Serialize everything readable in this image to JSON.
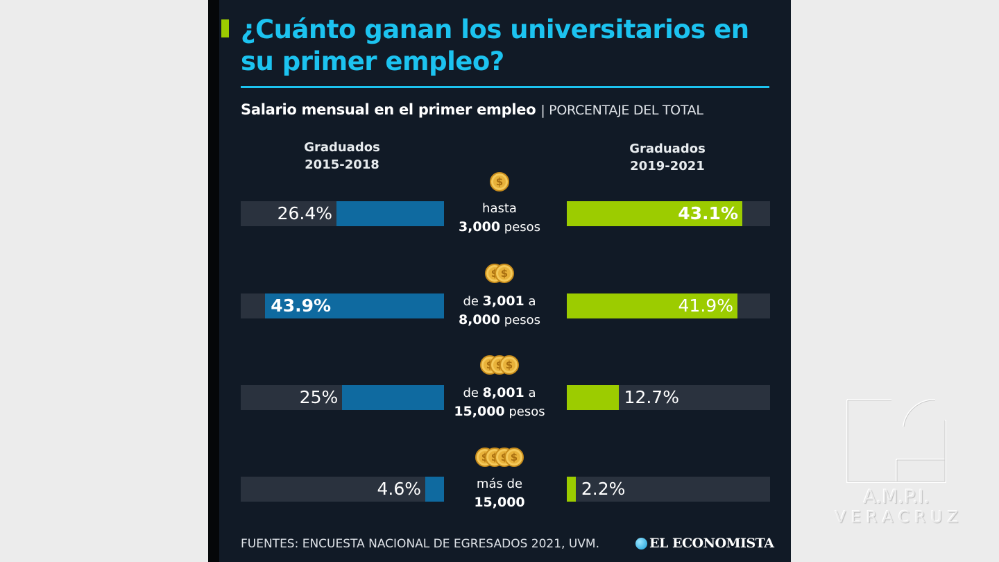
{
  "infographic": {
    "title": "¿Cuánto ganan los universitarios en su primer empleo?",
    "subtitle_bold": "Salario mensual en el primer empleo",
    "subtitle_light": "| PORCENTAJE DEL TOTAL",
    "source": "FUENTES: ENCUESTA NACIONAL DE EGRESADOS 2021, UVM.",
    "publisher_logo": "EL ECONOMISTA"
  },
  "chart_data": {
    "type": "bar",
    "title": "Salario mensual en el primer empleo",
    "ylabel": "Porcentaje del total",
    "categories": [
      {
        "pre": "hasta",
        "bold": "3,000",
        "post": " pesos",
        "coins": 1
      },
      {
        "pre": "de ",
        "bold": "3,001",
        "mid": " a",
        "bold2": "8,000",
        "post": " pesos",
        "coins": 2
      },
      {
        "pre": "de ",
        "bold": "8,001",
        "mid": " a",
        "bold2": "15,000",
        "post": " pesos",
        "coins": 3
      },
      {
        "pre": "más de",
        "bold": "15,000",
        "post": "",
        "coins": 4
      }
    ],
    "series": [
      {
        "name": "Graduados 2015-2018",
        "name_line1": "Graduados",
        "name_line2": "2015-2018",
        "color": "#0f6aa0",
        "values": [
          26.4,
          43.9,
          25,
          4.6
        ],
        "labels": [
          "26.4%",
          "43.9%",
          "25%",
          "4.6%"
        ],
        "highlight": [
          false,
          true,
          false,
          false
        ]
      },
      {
        "name": "Graduados 2019-2021",
        "name_line1": "Graduados",
        "name_line2": "2019-2021",
        "color": "#9ccc00",
        "values": [
          43.1,
          41.9,
          12.7,
          2.2
        ],
        "labels": [
          "43.1%",
          "41.9%",
          "12.7%",
          "2.2%"
        ],
        "highlight": [
          true,
          false,
          false,
          false
        ]
      }
    ],
    "ylim": [
      0,
      50
    ]
  },
  "watermark": {
    "line1": "A.M.P.I.",
    "line2": "V E R A C R U Z"
  }
}
